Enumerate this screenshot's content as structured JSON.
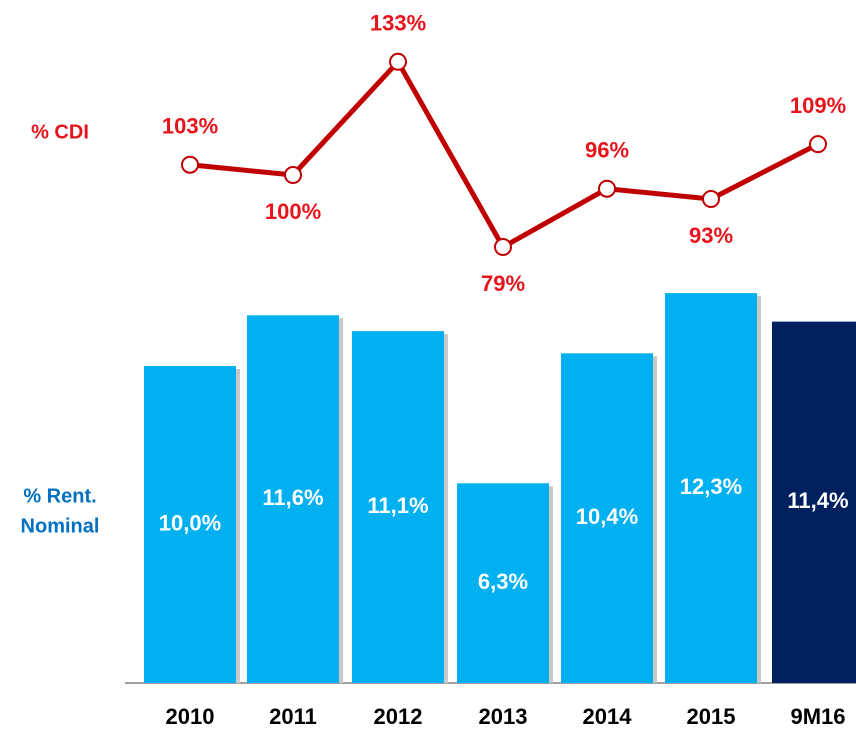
{
  "chart_data": [
    {
      "type": "bar",
      "label": [
        "% Rent.",
        "Nominal"
      ],
      "label_color": "#0070c0",
      "categories": [
        "2010",
        "2011",
        "2012",
        "2013",
        "2014",
        "2015",
        "9M16"
      ],
      "values": [
        10.0,
        11.6,
        11.1,
        6.3,
        10.4,
        12.3,
        11.4
      ],
      "value_labels": [
        "10,0%",
        "11,6%",
        "11,1%",
        "6,3%",
        "10,4%",
        "12,3%",
        "11,4%"
      ],
      "colors": [
        "#00b0f0",
        "#00b0f0",
        "#00b0f0",
        "#00b0f0",
        "#00b0f0",
        "#00b0f0",
        "#002060"
      ]
    },
    {
      "type": "line",
      "label": "% CDI",
      "categories": [
        "2010",
        "2011",
        "2012",
        "2013",
        "2014",
        "2015",
        "9M16"
      ],
      "values": [
        103,
        100,
        133,
        79,
        96,
        93,
        109
      ],
      "value_labels": [
        "103%",
        "100%",
        "133%",
        "79%",
        "96%",
        "93%",
        "109%"
      ],
      "color": "#c00000",
      "label_color": "#e8141c"
    }
  ]
}
